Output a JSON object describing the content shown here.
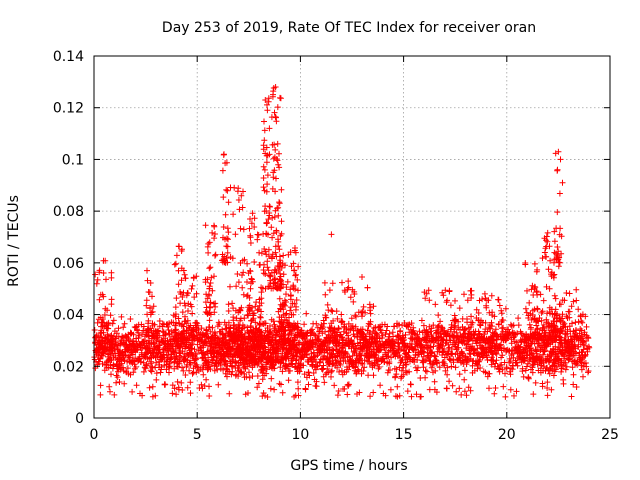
{
  "chart_data": {
    "type": "scatter",
    "title": "Day 253 of 2019, Rate Of TEC Index for receiver oran",
    "xlabel": "GPS time / hours",
    "ylabel": "ROTI / TECUs",
    "xlim": [
      0,
      25
    ],
    "ylim": [
      0,
      0.14
    ],
    "x_ticks": [
      0,
      5,
      10,
      15,
      20,
      25
    ],
    "x_tick_labels": [
      "0",
      "5",
      "10",
      "15",
      "20",
      "25"
    ],
    "y_ticks": [
      0,
      0.02,
      0.04,
      0.06,
      0.08,
      0.1,
      0.12,
      0.14
    ],
    "y_tick_labels": [
      "0",
      "0.02",
      "0.04",
      "0.06",
      "0.08",
      "0.1",
      "0.12",
      "0.14"
    ],
    "grid": true,
    "marker": "plus",
    "marker_color": "#ff0000",
    "series": [
      {
        "name": "ROTI",
        "background_band": [
          0.012,
          0.042
        ],
        "density": [
          [
            0.0,
            0.8
          ],
          [
            1.0,
            1.0
          ],
          [
            2.5,
            1.0
          ],
          [
            4.0,
            1.2
          ],
          [
            5.0,
            0.9
          ],
          [
            6.0,
            1.2
          ],
          [
            7.0,
            1.5
          ],
          [
            8.0,
            1.6
          ],
          [
            9.0,
            1.5
          ],
          [
            10.5,
            1.1
          ],
          [
            12.0,
            1.0
          ],
          [
            13.5,
            1.0
          ],
          [
            15.0,
            0.9
          ],
          [
            16.0,
            0.9
          ],
          [
            17.0,
            0.7
          ],
          [
            18.5,
            0.9
          ],
          [
            20.0,
            0.7
          ],
          [
            21.0,
            1.0
          ],
          [
            22.0,
            1.2
          ],
          [
            23.0,
            1.0
          ],
          [
            24.0,
            0.5
          ]
        ],
        "clusters": [
          {
            "x": [
              0.05,
              0.9
            ],
            "y": [
              0.025,
              0.062
            ],
            "n": 60
          },
          {
            "x": [
              2.5,
              2.9
            ],
            "y": [
              0.03,
              0.058
            ],
            "n": 25
          },
          {
            "x": [
              3.9,
              4.4
            ],
            "y": [
              0.03,
              0.067
            ],
            "n": 45
          },
          {
            "x": [
              4.4,
              5.0
            ],
            "y": [
              0.03,
              0.055
            ],
            "n": 40
          },
          {
            "x": [
              5.4,
              5.9
            ],
            "y": [
              0.04,
              0.076
            ],
            "n": 45
          },
          {
            "x": [
              6.2,
              6.5
            ],
            "y": [
              0.06,
              0.103
            ],
            "n": 30
          },
          {
            "x": [
              6.5,
              7.3
            ],
            "y": [
              0.03,
              0.09
            ],
            "n": 70
          },
          {
            "x": [
              7.4,
              8.2
            ],
            "y": [
              0.03,
              0.08
            ],
            "n": 80
          },
          {
            "x": [
              8.2,
              9.1
            ],
            "y": [
              0.05,
              0.128
            ],
            "n": 150
          },
          {
            "x": [
              9.0,
              9.9
            ],
            "y": [
              0.035,
              0.066
            ],
            "n": 90
          },
          {
            "x": [
              11.0,
              13.6
            ],
            "y": [
              0.03,
              0.056
            ],
            "n": 70
          },
          {
            "x": [
              16.0,
              18.5
            ],
            "y": [
              0.03,
              0.05
            ],
            "n": 70
          },
          {
            "x": [
              18.5,
              20.2
            ],
            "y": [
              0.03,
              0.048
            ],
            "n": 60
          },
          {
            "x": [
              20.8,
              21.6
            ],
            "y": [
              0.03,
              0.06
            ],
            "n": 60
          },
          {
            "x": [
              21.6,
              22.6
            ],
            "y": [
              0.03,
              0.072
            ],
            "n": 90
          },
          {
            "x": [
              22.3,
              22.7
            ],
            "y": [
              0.06,
              0.104
            ],
            "n": 25
          },
          {
            "x": [
              22.6,
              23.9
            ],
            "y": [
              0.025,
              0.05
            ],
            "n": 60
          }
        ],
        "notable_points": [
          {
            "x": 8.8,
            "y": 0.128
          },
          {
            "x": 8.3,
            "y": 0.123
          },
          {
            "x": 8.4,
            "y": 0.119
          },
          {
            "x": 11.5,
            "y": 0.071
          },
          {
            "x": 22.5,
            "y": 0.103
          },
          {
            "x": 22.6,
            "y": 0.1
          },
          {
            "x": 6.3,
            "y": 0.102
          },
          {
            "x": 8.5,
            "y": 0.112
          },
          {
            "x": 8.9,
            "y": 0.106
          }
        ]
      }
    ]
  }
}
